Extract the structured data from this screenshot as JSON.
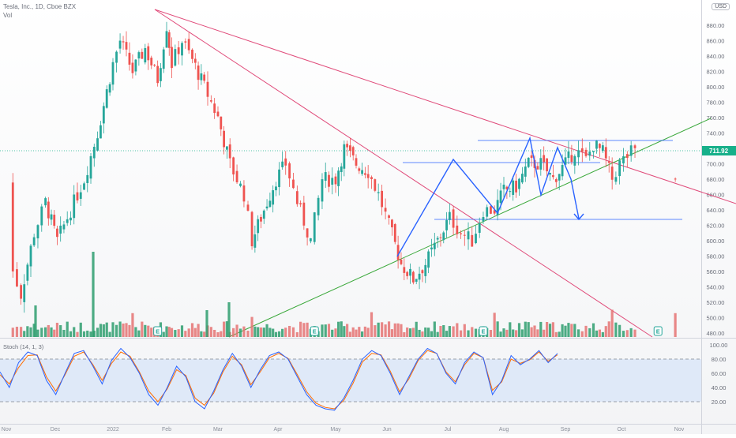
{
  "header": {
    "symbol_title": "Tesla, Inc., 1D, Cboe BZX",
    "volume_label": "Vol",
    "stoch_label": "Stoch (14, 1, 3)",
    "currency": "USD"
  },
  "colors": {
    "up": "#26a69a",
    "down": "#ef5350",
    "vol_up": "#2e9e6e",
    "vol_down": "#e57373",
    "trendline": "#e04b7a",
    "support": "#3aa83a",
    "pattern": "#2962ff",
    "stoch_k": "#2962ff",
    "stoch_d": "#ff6d00",
    "price_badge": "#17b08a",
    "event_badge": "#26a69a"
  },
  "chart_data": [
    {
      "type": "candlestick",
      "title": "Tesla, Inc., 1D, Cboe BZX",
      "x_tick_labels": [
        "Nov",
        "Dec",
        "2022",
        "Feb",
        "Mar",
        "Apr",
        "May",
        "Jun",
        "Jul",
        "Aug",
        "Sep",
        "Oct",
        "Nov"
      ],
      "y_tick_labels": [
        "480.00",
        "500.00",
        "520.00",
        "540.00",
        "560.00",
        "580.00",
        "600.00",
        "620.00",
        "640.00",
        "660.00",
        "680.00",
        "700.00",
        "720.00",
        "740.00",
        "760.00",
        "780.00",
        "800.00",
        "820.00",
        "840.00",
        "860.00",
        "880.00"
      ],
      "ylim": [
        470,
        900
      ],
      "last_price": "711.92",
      "price_path": [
        {
          "x": "Oct 29",
          "y": 680
        },
        {
          "x": "Nov 5",
          "y": 560
        },
        {
          "x": "Nov 10",
          "y": 530
        },
        {
          "x": "Nov 18",
          "y": 610
        },
        {
          "x": "Nov 25",
          "y": 650
        },
        {
          "x": "Dec 2",
          "y": 600
        },
        {
          "x": "Dec 9",
          "y": 640
        },
        {
          "x": "Dec 16",
          "y": 680
        },
        {
          "x": "Dec 23",
          "y": 740
        },
        {
          "x": "Dec 31",
          "y": 830
        },
        {
          "x": "Jan 5",
          "y": 860
        },
        {
          "x": "Jan 12",
          "y": 820
        },
        {
          "x": "Jan 19",
          "y": 850
        },
        {
          "x": "Jan 26",
          "y": 810
        },
        {
          "x": "Jan 31",
          "y": 880
        },
        {
          "x": "Feb 4",
          "y": 830
        },
        {
          "x": "Feb 10",
          "y": 860
        },
        {
          "x": "Feb 16",
          "y": 835
        },
        {
          "x": "Feb 23",
          "y": 800
        },
        {
          "x": "Mar 1",
          "y": 760
        },
        {
          "x": "Mar 7",
          "y": 700
        },
        {
          "x": "Mar 14",
          "y": 660
        },
        {
          "x": "Mar 18",
          "y": 600
        },
        {
          "x": "Mar 24",
          "y": 640
        },
        {
          "x": "Mar 30",
          "y": 680
        },
        {
          "x": "Apr 5",
          "y": 700
        },
        {
          "x": "Apr 11",
          "y": 650
        },
        {
          "x": "Apr 18",
          "y": 600
        },
        {
          "x": "Apr 24",
          "y": 680
        },
        {
          "x": "May 1",
          "y": 680
        },
        {
          "x": "May 6",
          "y": 720
        },
        {
          "x": "May 13",
          "y": 700
        },
        {
          "x": "May 20",
          "y": 690
        },
        {
          "x": "May 26",
          "y": 660
        },
        {
          "x": "Jun 2",
          "y": 620
        },
        {
          "x": "Jun 8",
          "y": 570
        },
        {
          "x": "Jun 14",
          "y": 550
        },
        {
          "x": "Jun 20",
          "y": 570
        },
        {
          "x": "Jun 26",
          "y": 600
        },
        {
          "x": "Jul 2",
          "y": 630
        },
        {
          "x": "Jul 8",
          "y": 610
        },
        {
          "x": "Jul 14",
          "y": 600
        },
        {
          "x": "Jul 20",
          "y": 640
        },
        {
          "x": "Jul 26",
          "y": 640
        },
        {
          "x": "Aug 1",
          "y": 665
        },
        {
          "x": "Aug 7",
          "y": 670
        },
        {
          "x": "Aug 13",
          "y": 700
        },
        {
          "x": "Aug 19",
          "y": 700
        },
        {
          "x": "Aug 25",
          "y": 680
        },
        {
          "x": "Aug 31",
          "y": 700
        },
        {
          "x": "Sep 6",
          "y": 718
        },
        {
          "x": "Sep 12",
          "y": 705
        },
        {
          "x": "Sep 16",
          "y": 725
        },
        {
          "x": "Sep 21",
          "y": 715
        },
        {
          "x": "Sep 26",
          "y": 680
        },
        {
          "x": "Sep 30",
          "y": 700
        },
        {
          "x": "Oct 6",
          "y": 715
        },
        {
          "x": "Oct 10",
          "y": 712
        }
      ],
      "volume_markers": [
        {
          "label": "E",
          "x": "Jan 26"
        },
        {
          "label": "E",
          "x": "Apr 20"
        },
        {
          "label": "E",
          "x": "Jul 20"
        },
        {
          "label": "E",
          "x": "Oct 20"
        }
      ]
    },
    {
      "type": "line",
      "title": "Stoch (14, 1, 3)",
      "y_tick_labels": [
        "20.00",
        "40.00",
        "60.00",
        "80.00",
        "100.00"
      ],
      "ylim": [
        0,
        100
      ],
      "levels": [
        20,
        80
      ],
      "series": [
        {
          "name": "%K",
          "values": [
            62,
            40,
            75,
            90,
            85,
            50,
            30,
            60,
            88,
            92,
            70,
            45,
            78,
            95,
            82,
            60,
            30,
            15,
            40,
            70,
            55,
            20,
            10,
            35,
            65,
            88,
            70,
            40,
            65,
            85,
            90,
            80,
            55,
            30,
            15,
            10,
            8,
            25,
            50,
            80,
            92,
            85,
            60,
            30,
            55,
            80,
            95,
            88,
            60,
            45,
            75,
            90,
            82,
            30,
            50,
            85,
            72,
            80,
            92,
            75,
            88
          ]
        },
        {
          "name": "%D",
          "values": [
            58,
            45,
            68,
            85,
            86,
            55,
            35,
            58,
            84,
            90,
            72,
            50,
            74,
            90,
            84,
            62,
            35,
            20,
            38,
            65,
            57,
            25,
            15,
            32,
            62,
            84,
            72,
            44,
            62,
            82,
            88,
            81,
            58,
            34,
            18,
            12,
            10,
            22,
            46,
            76,
            88,
            86,
            63,
            34,
            52,
            78,
            92,
            88,
            62,
            48,
            72,
            88,
            82,
            36,
            48,
            80,
            74,
            79,
            90,
            77,
            86
          ]
        }
      ]
    }
  ]
}
